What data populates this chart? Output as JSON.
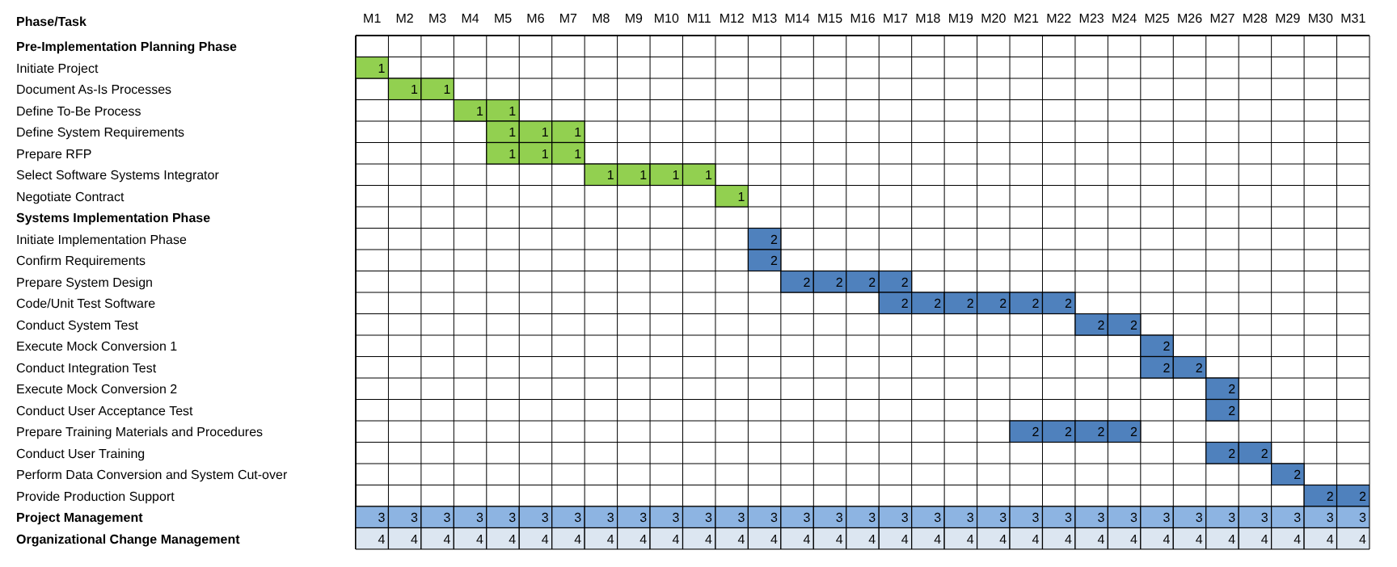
{
  "chart_data": {
    "type": "heatmap",
    "ylabel": "Phase/Task",
    "data_labels": true,
    "categories": [
      "M1",
      "M2",
      "M3",
      "M4",
      "M5",
      "M6",
      "M7",
      "M8",
      "M9",
      "M10",
      "M11",
      "M12",
      "M13",
      "M14",
      "M15",
      "M16",
      "M17",
      "M18",
      "M19",
      "M20",
      "M21",
      "M22",
      "M23",
      "M24",
      "M25",
      "M26",
      "M27",
      "M28",
      "M29",
      "M30",
      "M31"
    ],
    "y_categories": [
      "Pre-Implementation Planning Phase",
      "Initiate Project",
      "Document As-Is Processes",
      "Define To-Be Process",
      "Define System Requirements",
      "Prepare RFP",
      "Select Software Systems Integrator",
      "Negotiate Contract",
      "Systems Implementation Phase",
      "Initiate Implementation Phase",
      "Confirm Requirements",
      "Prepare System Design",
      "Code/Unit Test Software",
      "Conduct System Test",
      "Execute Mock Conversion 1",
      "Conduct Integration Test",
      "Execute Mock Conversion 2",
      "Conduct User Acceptance Test",
      "Prepare Training Materials and Procedures",
      "Conduct User Training",
      "Perform Data Conversion and System Cut-over",
      "Provide Production Support",
      "Project Management",
      "Organizational Change Management"
    ],
    "colors": [
      "#92d050",
      "#4f81bd",
      "#8db4e2",
      "#dce6f1"
    ],
    "cells": [
      [
        null,
        null,
        null,
        null,
        null,
        null,
        null,
        null,
        null,
        null,
        null,
        null,
        null,
        null,
        null,
        null,
        null,
        null,
        null,
        null,
        null,
        null,
        null,
        null,
        null,
        null,
        null,
        null,
        null,
        null,
        null
      ],
      [
        1,
        null,
        null,
        null,
        null,
        null,
        null,
        null,
        null,
        null,
        null,
        null,
        null,
        null,
        null,
        null,
        null,
        null,
        null,
        null,
        null,
        null,
        null,
        null,
        null,
        null,
        null,
        null,
        null,
        null,
        null
      ],
      [
        null,
        1,
        1,
        null,
        null,
        null,
        null,
        null,
        null,
        null,
        null,
        null,
        null,
        null,
        null,
        null,
        null,
        null,
        null,
        null,
        null,
        null,
        null,
        null,
        null,
        null,
        null,
        null,
        null,
        null,
        null
      ],
      [
        null,
        null,
        null,
        1,
        1,
        null,
        null,
        null,
        null,
        null,
        null,
        null,
        null,
        null,
        null,
        null,
        null,
        null,
        null,
        null,
        null,
        null,
        null,
        null,
        null,
        null,
        null,
        null,
        null,
        null,
        null
      ],
      [
        null,
        null,
        null,
        null,
        1,
        1,
        1,
        null,
        null,
        null,
        null,
        null,
        null,
        null,
        null,
        null,
        null,
        null,
        null,
        null,
        null,
        null,
        null,
        null,
        null,
        null,
        null,
        null,
        null,
        null,
        null
      ],
      [
        null,
        null,
        null,
        null,
        1,
        1,
        1,
        null,
        null,
        null,
        null,
        null,
        null,
        null,
        null,
        null,
        null,
        null,
        null,
        null,
        null,
        null,
        null,
        null,
        null,
        null,
        null,
        null,
        null,
        null,
        null
      ],
      [
        null,
        null,
        null,
        null,
        null,
        null,
        null,
        1,
        1,
        1,
        1,
        null,
        null,
        null,
        null,
        null,
        null,
        null,
        null,
        null,
        null,
        null,
        null,
        null,
        null,
        null,
        null,
        null,
        null,
        null,
        null
      ],
      [
        null,
        null,
        null,
        null,
        null,
        null,
        null,
        null,
        null,
        null,
        null,
        1,
        null,
        null,
        null,
        null,
        null,
        null,
        null,
        null,
        null,
        null,
        null,
        null,
        null,
        null,
        null,
        null,
        null,
        null,
        null
      ],
      [
        null,
        null,
        null,
        null,
        null,
        null,
        null,
        null,
        null,
        null,
        null,
        null,
        null,
        null,
        null,
        null,
        null,
        null,
        null,
        null,
        null,
        null,
        null,
        null,
        null,
        null,
        null,
        null,
        null,
        null,
        null
      ],
      [
        null,
        null,
        null,
        null,
        null,
        null,
        null,
        null,
        null,
        null,
        null,
        null,
        2,
        null,
        null,
        null,
        null,
        null,
        null,
        null,
        null,
        null,
        null,
        null,
        null,
        null,
        null,
        null,
        null,
        null,
        null
      ],
      [
        null,
        null,
        null,
        null,
        null,
        null,
        null,
        null,
        null,
        null,
        null,
        null,
        2,
        null,
        null,
        null,
        null,
        null,
        null,
        null,
        null,
        null,
        null,
        null,
        null,
        null,
        null,
        null,
        null,
        null,
        null
      ],
      [
        null,
        null,
        null,
        null,
        null,
        null,
        null,
        null,
        null,
        null,
        null,
        null,
        null,
        2,
        2,
        2,
        2,
        null,
        null,
        null,
        null,
        null,
        null,
        null,
        null,
        null,
        null,
        null,
        null,
        null,
        null
      ],
      [
        null,
        null,
        null,
        null,
        null,
        null,
        null,
        null,
        null,
        null,
        null,
        null,
        null,
        null,
        null,
        null,
        2,
        2,
        2,
        2,
        2,
        2,
        null,
        null,
        null,
        null,
        null,
        null,
        null,
        null,
        null
      ],
      [
        null,
        null,
        null,
        null,
        null,
        null,
        null,
        null,
        null,
        null,
        null,
        null,
        null,
        null,
        null,
        null,
        null,
        null,
        null,
        null,
        null,
        null,
        2,
        2,
        null,
        null,
        null,
        null,
        null,
        null,
        null
      ],
      [
        null,
        null,
        null,
        null,
        null,
        null,
        null,
        null,
        null,
        null,
        null,
        null,
        null,
        null,
        null,
        null,
        null,
        null,
        null,
        null,
        null,
        null,
        null,
        null,
        2,
        null,
        null,
        null,
        null,
        null,
        null
      ],
      [
        null,
        null,
        null,
        null,
        null,
        null,
        null,
        null,
        null,
        null,
        null,
        null,
        null,
        null,
        null,
        null,
        null,
        null,
        null,
        null,
        null,
        null,
        null,
        null,
        2,
        2,
        null,
        null,
        null,
        null,
        null
      ],
      [
        null,
        null,
        null,
        null,
        null,
        null,
        null,
        null,
        null,
        null,
        null,
        null,
        null,
        null,
        null,
        null,
        null,
        null,
        null,
        null,
        null,
        null,
        null,
        null,
        null,
        null,
        2,
        null,
        null,
        null,
        null
      ],
      [
        null,
        null,
        null,
        null,
        null,
        null,
        null,
        null,
        null,
        null,
        null,
        null,
        null,
        null,
        null,
        null,
        null,
        null,
        null,
        null,
        null,
        null,
        null,
        null,
        null,
        null,
        2,
        null,
        null,
        null,
        null
      ],
      [
        null,
        null,
        null,
        null,
        null,
        null,
        null,
        null,
        null,
        null,
        null,
        null,
        null,
        null,
        null,
        null,
        null,
        null,
        null,
        null,
        2,
        2,
        2,
        2,
        null,
        null,
        null,
        null,
        null,
        null,
        null
      ],
      [
        null,
        null,
        null,
        null,
        null,
        null,
        null,
        null,
        null,
        null,
        null,
        null,
        null,
        null,
        null,
        null,
        null,
        null,
        null,
        null,
        null,
        null,
        null,
        null,
        null,
        null,
        2,
        2,
        null,
        null,
        null
      ],
      [
        null,
        null,
        null,
        null,
        null,
        null,
        null,
        null,
        null,
        null,
        null,
        null,
        null,
        null,
        null,
        null,
        null,
        null,
        null,
        null,
        null,
        null,
        null,
        null,
        null,
        null,
        null,
        null,
        2,
        null,
        null
      ],
      [
        null,
        null,
        null,
        null,
        null,
        null,
        null,
        null,
        null,
        null,
        null,
        null,
        null,
        null,
        null,
        null,
        null,
        null,
        null,
        null,
        null,
        null,
        null,
        null,
        null,
        null,
        null,
        null,
        null,
        2,
        2
      ],
      [
        3,
        3,
        3,
        3,
        3,
        3,
        3,
        3,
        3,
        3,
        3,
        3,
        3,
        3,
        3,
        3,
        3,
        3,
        3,
        3,
        3,
        3,
        3,
        3,
        3,
        3,
        3,
        3,
        3,
        3,
        3
      ],
      [
        4,
        4,
        4,
        4,
        4,
        4,
        4,
        4,
        4,
        4,
        4,
        4,
        4,
        4,
        4,
        4,
        4,
        4,
        4,
        4,
        4,
        4,
        4,
        4,
        4,
        4,
        4,
        4,
        4,
        4,
        4
      ]
    ]
  }
}
